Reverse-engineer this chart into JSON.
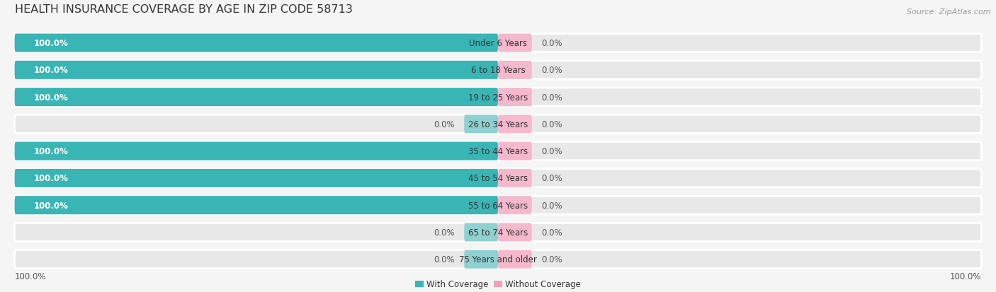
{
  "title": "HEALTH INSURANCE COVERAGE BY AGE IN ZIP CODE 58713",
  "source": "Source: ZipAtlas.com",
  "categories": [
    "Under 6 Years",
    "6 to 18 Years",
    "19 to 25 Years",
    "26 to 34 Years",
    "35 to 44 Years",
    "45 to 54 Years",
    "55 to 64 Years",
    "65 to 74 Years",
    "75 Years and older"
  ],
  "with_coverage": [
    100.0,
    100.0,
    100.0,
    0.0,
    100.0,
    100.0,
    100.0,
    0.0,
    0.0
  ],
  "without_coverage": [
    0.0,
    0.0,
    0.0,
    0.0,
    0.0,
    0.0,
    0.0,
    0.0,
    0.0
  ],
  "color_with": "#3ab5b5",
  "color_without": "#f2a0b8",
  "color_with_zero": "#90d0d0",
  "color_without_zero": "#f5b8cc",
  "color_bg_bar": "#e8e8e8",
  "background_color": "#f5f5f5",
  "title_fontsize": 11.5,
  "label_fontsize": 8.5,
  "source_fontsize": 8,
  "axis_label_fontsize": 8.5,
  "x_left_label": "100.0%",
  "x_right_label": "100.0%",
  "legend_label_with": "With Coverage",
  "legend_label_without": "Without Coverage"
}
